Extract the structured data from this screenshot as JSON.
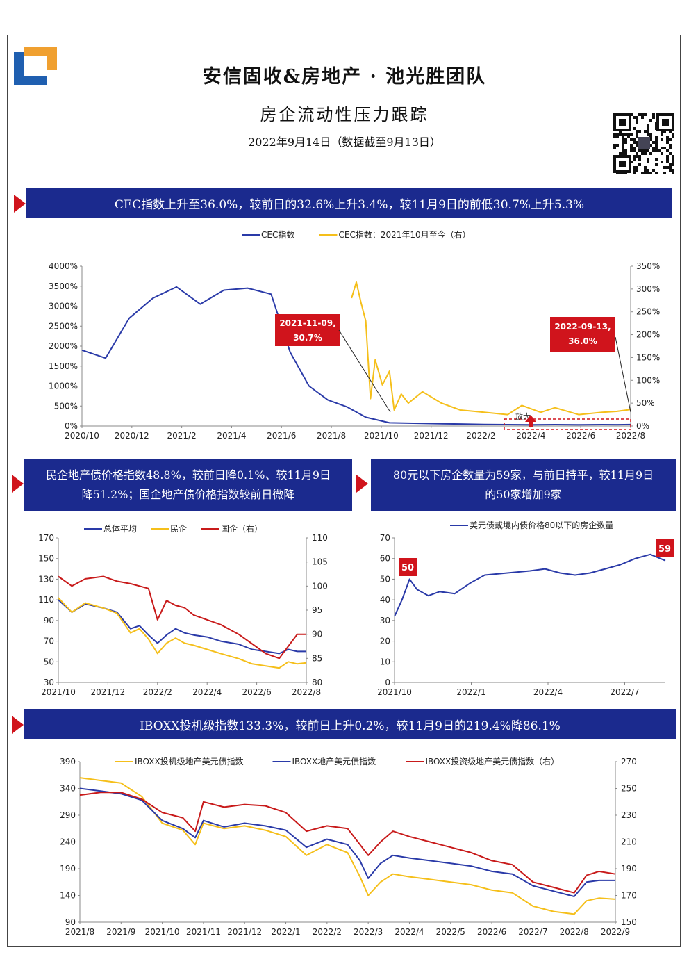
{
  "header": {
    "title": "安信固收&房地产 · 池光胜团队",
    "subtitle": "房企流动性压力跟踪",
    "date": "2022年9月14日（数据截至9月13日）"
  },
  "sections": {
    "s1": "CEC指数上升至36.0%，较前日的32.6%上升3.4%，较11月9日的前低30.7%上升5.3%",
    "s2_line1": "民企地产债价格指数48.8%，较前日降0.1%、较11月9日",
    "s2_line2": "降51.2%；国企地产债价格指数较前日微降",
    "s3_line1": "80元以下房企数量为59家，与前日持平，较11月9日",
    "s3_line2": "的50家增加9家",
    "s4": "IBOXX投机级指数133.3%，较前日上升0.2%，较11月9日的219.4%降86.1%"
  },
  "colors": {
    "navy": "#1b2a8e",
    "red": "#d0141c",
    "blue": "#2a3aa8",
    "yellow": "#f5bf1a",
    "crimson": "#c81a1a"
  },
  "chart_data": [
    {
      "type": "line",
      "legend": [
        "CEC指数",
        "CEC指数：2021年10月至今（右）"
      ],
      "x_ticks": [
        "2020/10",
        "2020/12",
        "2021/2",
        "2021/4",
        "2021/6",
        "2021/8",
        "2021/10",
        "2021/12",
        "2022/2",
        "2022/4",
        "2022/6",
        "2022/8"
      ],
      "y_left_ticks": [
        "4000%",
        "3500%",
        "3000%",
        "2500%",
        "2000%",
        "1500%",
        "1000%",
        "500%",
        "0%"
      ],
      "y_right_ticks": [
        "350%",
        "300%",
        "250%",
        "200%",
        "150%",
        "100%",
        "50%",
        "0%"
      ],
      "ylim_left": [
        0,
        4000
      ],
      "ylim_right": [
        0,
        350
      ],
      "series": [
        {
          "name": "CEC指数",
          "axis": "left",
          "x": [
            0,
            0.5,
            1,
            1.5,
            2,
            2.5,
            3,
            3.5,
            4,
            4.4,
            4.8,
            5.2,
            5.6,
            6,
            6.5,
            7,
            7.5,
            8,
            8.5,
            9,
            9.5,
            10,
            10.5,
            11,
            11.3,
            11.6
          ],
          "values": [
            1900,
            1700,
            2700,
            3200,
            3480,
            3050,
            3400,
            3450,
            3300,
            1850,
            1000,
            650,
            480,
            220,
            80,
            70,
            60,
            50,
            40,
            35,
            30,
            35,
            32,
            34,
            33,
            36
          ]
        },
        {
          "name": "CEC指数：2021年10月至今（右）",
          "axis": "right",
          "x": [
            5.7,
            5.8,
            5.9,
            6.0,
            6.1,
            6.2,
            6.35,
            6.5,
            6.6,
            6.75,
            6.9,
            7.2,
            7.6,
            8,
            8.5,
            9,
            9.3,
            9.7,
            10,
            10.5,
            11,
            11.3,
            11.6
          ],
          "values": [
            280,
            315,
            270,
            230,
            60,
            145,
            90,
            120,
            35,
            70,
            50,
            75,
            50,
            35,
            30,
            25,
            45,
            30,
            40,
            25,
            30,
            32,
            36
          ]
        }
      ],
      "annotations": [
        "2021-11-09,",
        "30.7%",
        "2022-09-13,",
        "36.0%",
        "放大"
      ]
    },
    {
      "type": "line",
      "legend": [
        "总体平均",
        "民企",
        "国企（右）"
      ],
      "x_ticks": [
        "2021/10",
        "2021/12",
        "2022/2",
        "2022/4",
        "2022/6",
        "2022/8"
      ],
      "y_left_ticks": [
        "170",
        "150",
        "130",
        "110",
        "90",
        "70",
        "50",
        "30"
      ],
      "y_right_ticks": [
        "110",
        "105",
        "100",
        "95",
        "90",
        "85",
        "80"
      ],
      "ylim_left": [
        30,
        170
      ],
      "ylim_right": [
        80,
        110
      ],
      "series": [
        {
          "name": "总体平均",
          "axis": "left",
          "x": [
            0,
            0.3,
            0.6,
            1,
            1.3,
            1.6,
            1.8,
            2,
            2.2,
            2.4,
            2.6,
            2.8,
            3,
            3.3,
            3.6,
            4,
            4.3,
            4.6,
            4.9,
            5.1,
            5.3,
            5.5
          ],
          "values": [
            110,
            98,
            106,
            102,
            98,
            82,
            85,
            76,
            68,
            76,
            82,
            78,
            76,
            74,
            70,
            67,
            62,
            60,
            58,
            62,
            60,
            60
          ]
        },
        {
          "name": "民企",
          "axis": "left",
          "x": [
            0,
            0.3,
            0.6,
            1,
            1.3,
            1.6,
            1.8,
            2,
            2.2,
            2.4,
            2.6,
            2.8,
            3,
            3.3,
            3.6,
            4,
            4.3,
            4.6,
            4.9,
            5.1,
            5.3,
            5.5
          ],
          "values": [
            112,
            98,
            107,
            102,
            97,
            78,
            82,
            72,
            58,
            68,
            73,
            68,
            66,
            62,
            58,
            53,
            48,
            46,
            44,
            50,
            48,
            49
          ]
        },
        {
          "name": "国企（右）",
          "axis": "right",
          "x": [
            0,
            0.3,
            0.6,
            1,
            1.3,
            1.6,
            1.8,
            2,
            2.2,
            2.4,
            2.6,
            2.8,
            3,
            3.3,
            3.6,
            4,
            4.3,
            4.6,
            4.9,
            5.1,
            5.3,
            5.5
          ],
          "values": [
            102,
            100,
            101.5,
            102,
            101,
            100.5,
            100,
            99.5,
            93,
            97,
            96,
            95.5,
            94,
            93,
            92,
            90,
            88,
            86,
            85,
            87.5,
            90,
            90
          ]
        }
      ]
    },
    {
      "type": "line",
      "legend": [
        "美元债或境内债价格80以下的房企数量"
      ],
      "x_ticks": [
        "2021/10",
        "2022/1",
        "2022/4",
        "2022/7"
      ],
      "y_ticks": [
        "70",
        "60",
        "50",
        "40",
        "30",
        "20",
        "10",
        "0"
      ],
      "ylim": [
        0,
        70
      ],
      "series": [
        {
          "name": "美元债或境内债价格80以下的房企数量",
          "x": [
            0,
            0.1,
            0.2,
            0.3,
            0.45,
            0.6,
            0.8,
            1,
            1.2,
            1.5,
            1.8,
            2,
            2.2,
            2.4,
            2.6,
            2.8,
            3,
            3.2,
            3.4,
            3.6
          ],
          "values": [
            32,
            40,
            50,
            45,
            42,
            44,
            43,
            48,
            52,
            53,
            54,
            55,
            53,
            52,
            53,
            55,
            57,
            60,
            62,
            59
          ]
        }
      ],
      "labels": [
        "50",
        "59"
      ]
    },
    {
      "type": "line",
      "legend": [
        "IBOXX投机级地产美元债指数",
        "IBOXX地产美元债指数",
        "IBOXX投资级地产美元债指数（右）"
      ],
      "x_ticks": [
        "2021/8",
        "2021/9",
        "2021/10",
        "2021/11",
        "2021/12",
        "2022/1",
        "2022/2",
        "2022/3",
        "2022/4",
        "2022/5",
        "2022/6",
        "2022/7",
        "2022/8",
        "2022/9"
      ],
      "y_left_ticks": [
        "390",
        "340",
        "290",
        "240",
        "190",
        "140",
        "90"
      ],
      "y_right_ticks": [
        "270",
        "250",
        "230",
        "210",
        "190",
        "170",
        "150"
      ],
      "ylim_left": [
        90,
        390
      ],
      "ylim_right": [
        150,
        270
      ],
      "series": [
        {
          "name": "IBOXX投机级地产美元债指数",
          "axis": "left",
          "x": [
            0,
            0.5,
            1,
            1.5,
            2,
            2.5,
            2.8,
            3,
            3.5,
            4,
            4.5,
            5,
            5.5,
            6,
            6.5,
            6.8,
            7,
            7.3,
            7.6,
            8,
            8.5,
            9,
            9.5,
            10,
            10.5,
            11,
            11.5,
            12,
            12.3,
            12.6,
            13
          ],
          "values": [
            360,
            355,
            350,
            325,
            275,
            262,
            235,
            275,
            265,
            270,
            262,
            250,
            215,
            235,
            220,
            175,
            140,
            165,
            180,
            175,
            170,
            165,
            160,
            150,
            145,
            120,
            110,
            105,
            130,
            135,
            133
          ]
        },
        {
          "name": "IBOXX地产美元债指数",
          "axis": "left",
          "x": [
            0,
            0.5,
            1,
            1.5,
            2,
            2.5,
            2.8,
            3,
            3.5,
            4,
            4.5,
            5,
            5.5,
            6,
            6.5,
            6.8,
            7,
            7.3,
            7.6,
            8,
            8.5,
            9,
            9.5,
            10,
            10.5,
            11,
            11.5,
            12,
            12.3,
            12.6,
            13
          ],
          "values": [
            340,
            335,
            330,
            318,
            280,
            265,
            248,
            280,
            268,
            275,
            270,
            262,
            230,
            245,
            235,
            205,
            172,
            200,
            215,
            210,
            205,
            200,
            195,
            185,
            180,
            158,
            148,
            138,
            165,
            168,
            168
          ]
        },
        {
          "name": "IBOXX投资级地产美元债指数（右）",
          "axis": "right",
          "x": [
            0,
            0.5,
            1,
            1.5,
            2,
            2.5,
            2.8,
            3,
            3.5,
            4,
            4.5,
            5,
            5.5,
            6,
            6.5,
            6.8,
            7,
            7.3,
            7.6,
            8,
            8.5,
            9,
            9.5,
            10,
            10.5,
            11,
            11.5,
            12,
            12.3,
            12.6,
            13
          ],
          "values": [
            245,
            247,
            247,
            242,
            232,
            228,
            218,
            240,
            236,
            238,
            237,
            232,
            218,
            222,
            220,
            208,
            200,
            210,
            218,
            214,
            210,
            206,
            202,
            196,
            193,
            180,
            176,
            172,
            185,
            188,
            186
          ]
        }
      ]
    }
  ]
}
